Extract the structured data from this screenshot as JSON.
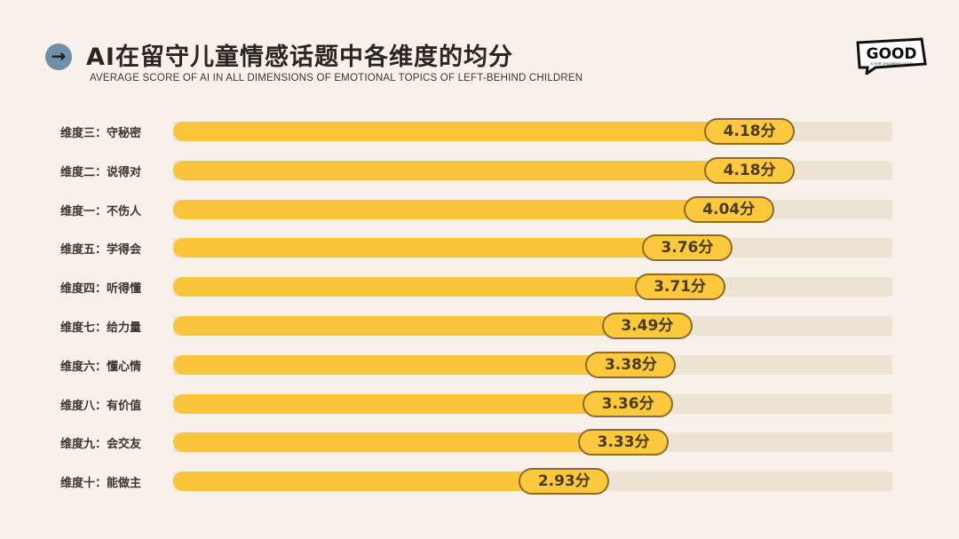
{
  "header": {
    "title": "AI在留守儿童情感话题中各维度的均分",
    "subtitle": "AVERAGE SCORE OF AI IN ALL DIMENSIONS OF EMOTIONAL TOPICS OF LEFT-BEHIND CHILDREN",
    "icon": "arrow-right-icon",
    "logo_text": "GOOD",
    "logo_tagline": "AI FOR CHILDREN'S GOOD"
  },
  "colors": {
    "bar": "#fbc53b",
    "track": "#ede4d6",
    "background": "#f8f1ea",
    "pill_border": "#8c6b2c"
  },
  "chart_data": {
    "type": "bar",
    "orientation": "horizontal",
    "title": "AI在留守儿童情感话题中各维度的均分",
    "unit_suffix": "分",
    "categories": [
      "维度三：守秘密",
      "维度二：说得对",
      "维度一：不伤人",
      "维度五：学得会",
      "维度四：听得懂",
      "维度七：给力量",
      "维度六：懂心情",
      "维度八：有价值",
      "维度九：会交友",
      "维度十：能做主"
    ],
    "values": [
      4.18,
      4.18,
      4.04,
      3.76,
      3.71,
      3.49,
      3.38,
      3.36,
      3.33,
      2.93
    ],
    "data_labels": [
      "4.18分",
      "4.18分",
      "4.04分",
      "3.76分",
      "3.71分",
      "3.49分",
      "3.38分",
      "3.36分",
      "3.33分",
      "2.93分"
    ],
    "xlim": [
      0,
      5
    ],
    "grid": false,
    "legend": "none"
  }
}
